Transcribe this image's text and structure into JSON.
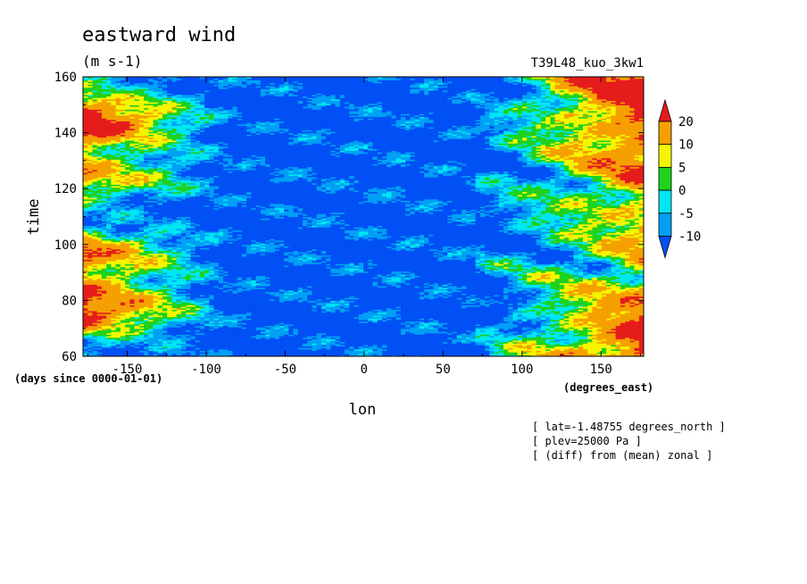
{
  "chart_data": {
    "type": "heatmap",
    "title": "eastward wind",
    "units": "(m s-1)",
    "experiment": "T39L48_kuo_3kw1",
    "xlabel": "lon",
    "xunits": "(degrees_east)",
    "ylabel": "time",
    "yunits": "(days since 0000-01-01)",
    "x_ticks": [
      -150,
      -100,
      -50,
      0,
      50,
      100,
      150
    ],
    "y_ticks": [
      60,
      80,
      100,
      120,
      140,
      160
    ],
    "xlim": [
      -178,
      177
    ],
    "ylim": [
      60,
      160
    ],
    "grid": false,
    "legend_position": "right",
    "colorbar": {
      "labels": [
        "20",
        "10",
        "5",
        "0",
        "-5",
        "-10"
      ],
      "colors": [
        "#e61c1c",
        "#f5a000",
        "#f5f500",
        "#1ed21e",
        "#00e6f5",
        "#00a0f5",
        "#0050f5"
      ]
    },
    "notes": [
      "[ lat=-1.48755 degrees_north ]",
      "[ plev=25000 Pa ]",
      "[ (diff) from (mean) zonal ]"
    ]
  }
}
